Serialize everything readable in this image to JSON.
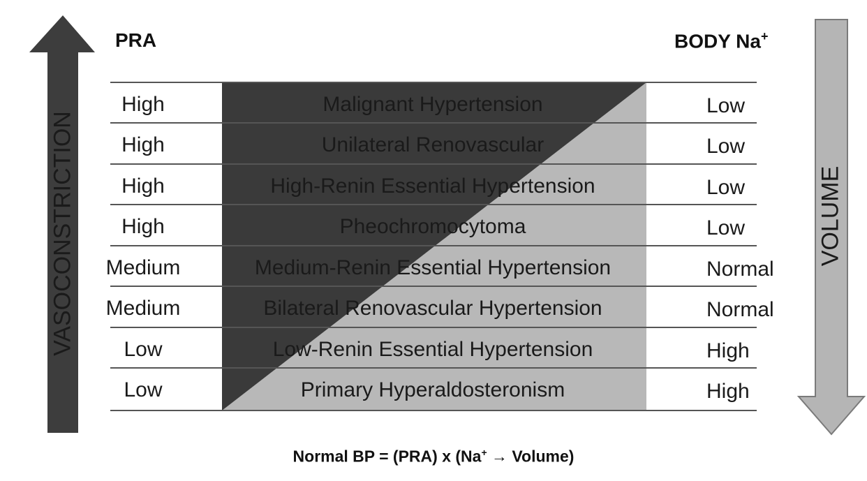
{
  "headers": {
    "left": "PRA",
    "right_main": "BODY Na",
    "right_sup": "+"
  },
  "arrows": {
    "up_label": "VASOCONSTRICTION",
    "down_label": "VOLUME"
  },
  "rows": [
    {
      "pra": "High",
      "condition": "Malignant Hypertension",
      "sodium": "Low"
    },
    {
      "pra": "High",
      "condition": "Unilateral Renovascular",
      "sodium": "Low"
    },
    {
      "pra": "High",
      "condition": "High-Renin Essential Hypertension",
      "sodium": "Low"
    },
    {
      "pra": "High",
      "condition": "Pheochromocytoma",
      "sodium": "Low"
    },
    {
      "pra": "Medium",
      "condition": "Medium-Renin Essential Hypertension",
      "sodium": "Normal"
    },
    {
      "pra": "Medium",
      "condition": "Bilateral Renovascular Hypertension",
      "sodium": "Normal"
    },
    {
      "pra": "Low",
      "condition": "Low-Renin Essential Hypertension",
      "sodium": "High"
    },
    {
      "pra": "Low",
      "condition": "Primary Hyperaldosteronism",
      "sodium": "High"
    }
  ],
  "formula": {
    "prefix": "Normal BP = (PRA) x (Na",
    "sup": "+",
    "arrow": " → ",
    "suffix": "Volume)"
  },
  "colors": {
    "dark_triangle": "#3a3a3a",
    "light_triangle": "#b8b8b8",
    "up_arrow": "#3d3d3d",
    "down_arrow": "#b5b5b5"
  }
}
